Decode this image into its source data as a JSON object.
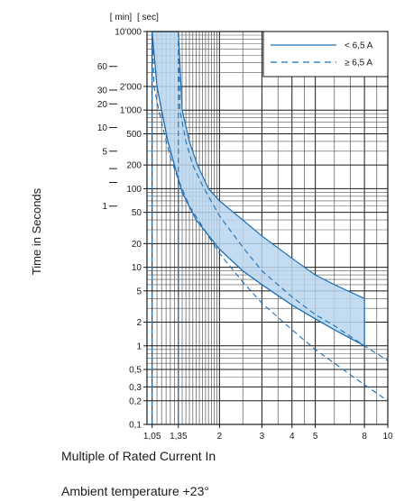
{
  "chart_data": {
    "type": "line",
    "xlabel": "Multiple of Rated Current In",
    "ylabel": "Time in Seconds",
    "x_scale": "log",
    "y_scale": "log",
    "xlim": [
      1,
      10
    ],
    "ylim": [
      0.1,
      10000
    ],
    "x_ticks": [
      {
        "value": 1.05,
        "label": "1,05"
      },
      {
        "value": 1.35,
        "label": "1,35"
      },
      {
        "value": 2,
        "label": "2"
      },
      {
        "value": 3,
        "label": "3"
      },
      {
        "value": 4,
        "label": "4"
      },
      {
        "value": 5,
        "label": "5"
      },
      {
        "value": 8,
        "label": "8"
      },
      {
        "value": 10,
        "label": "10"
      }
    ],
    "y_sec_ticks": [
      {
        "value": 10000,
        "label": "10'000"
      },
      {
        "value": 2000,
        "label": "2'000"
      },
      {
        "value": 1000,
        "label": "1'000"
      },
      {
        "value": 500,
        "label": "500"
      },
      {
        "value": 200,
        "label": "200"
      },
      {
        "value": 100,
        "label": "100"
      },
      {
        "value": 50,
        "label": "50"
      },
      {
        "value": 20,
        "label": "20"
      },
      {
        "value": 10,
        "label": "10"
      },
      {
        "value": 5,
        "label": "5"
      },
      {
        "value": 2,
        "label": "2"
      },
      {
        "value": 1,
        "label": "1"
      },
      {
        "value": 0.5,
        "label": "0,5"
      },
      {
        "value": 0.3,
        "label": "0,3"
      },
      {
        "value": 0.2,
        "label": "0,2"
      },
      {
        "value": 0.1,
        "label": "0,1"
      }
    ],
    "y_min_ticks": [
      {
        "value": 3600,
        "label": "60"
      },
      {
        "value": 1800,
        "label": "30"
      },
      {
        "value": 1200,
        "label": "20"
      },
      {
        "value": 600,
        "label": "10"
      },
      {
        "value": 300,
        "label": "5"
      },
      {
        "value": 180,
        "label": ""
      },
      {
        "value": 120,
        "label": ""
      },
      {
        "value": 60,
        "label": "1"
      }
    ],
    "unit_labels": {
      "min": "[ min]",
      "sec": "[ sec]"
    },
    "band": {
      "upper": [
        {
          "x": 1.35,
          "y": 10000
        },
        {
          "x": 1.4,
          "y": 1000
        },
        {
          "x": 1.5,
          "y": 400
        },
        {
          "x": 1.62,
          "y": 200
        },
        {
          "x": 1.8,
          "y": 100
        },
        {
          "x": 2.0,
          "y": 70
        },
        {
          "x": 2.5,
          "y": 40
        },
        {
          "x": 3.0,
          "y": 25
        },
        {
          "x": 4.0,
          "y": 13
        },
        {
          "x": 5.0,
          "y": 8
        },
        {
          "x": 6.0,
          "y": 6
        },
        {
          "x": 8.0,
          "y": 4
        }
      ],
      "lower": [
        {
          "x": 8.0,
          "y": 1
        },
        {
          "x": 6.0,
          "y": 1.6
        },
        {
          "x": 5.0,
          "y": 2.2
        },
        {
          "x": 4.0,
          "y": 3.3
        },
        {
          "x": 3.0,
          "y": 6
        },
        {
          "x": 2.5,
          "y": 9
        },
        {
          "x": 2.0,
          "y": 17
        },
        {
          "x": 1.6,
          "y": 40
        },
        {
          "x": 1.4,
          "y": 90
        },
        {
          "x": 1.3,
          "y": 200
        },
        {
          "x": 1.22,
          "y": 400
        },
        {
          "x": 1.15,
          "y": 1000
        },
        {
          "x": 1.1,
          "y": 2000
        },
        {
          "x": 1.05,
          "y": 10000
        }
      ]
    },
    "series": [
      {
        "name": "< 6,5 A",
        "style": "solid",
        "x": [
          1.05,
          1.05,
          1.1,
          1.15,
          1.22,
          1.3,
          1.4,
          1.6,
          2.0,
          2.5,
          3.0,
          4.0,
          5.0,
          6.0,
          8.0
        ],
        "y": [
          10000,
          10000,
          2000,
          1000,
          400,
          200,
          90,
          40,
          17,
          9,
          6,
          3.3,
          2.2,
          1.6,
          1
        ]
      },
      {
        "name": "≥ 6,5 A",
        "style": "dashed",
        "x": [
          1.05,
          1.07,
          1.12,
          1.18,
          1.25,
          1.35,
          1.5,
          1.8,
          2.0,
          2.5,
          3.0,
          4.0,
          5.0,
          6.0,
          8.0,
          10.0
        ],
        "y": [
          10000,
          2000,
          1000,
          500,
          250,
          130,
          60,
          25,
          15,
          6.5,
          3.5,
          1.6,
          0.9,
          0.6,
          0.32,
          0.2
        ]
      },
      {
        "name": "≥ 6,5 A",
        "style": "dashed",
        "legend": false,
        "x": [
          1.35,
          1.37,
          1.45,
          1.55,
          1.7,
          2.0,
          2.5,
          3.0,
          4.0,
          5.0,
          6.0,
          8.0,
          10.0
        ],
        "y": [
          10000,
          1000,
          400,
          200,
          110,
          45,
          18,
          9,
          4.2,
          2.5,
          1.8,
          1.0,
          0.65
        ]
      }
    ],
    "vlines": [
      {
        "x": 1.05,
        "style": "dashed"
      },
      {
        "x": 1.35,
        "style": "dashed"
      }
    ],
    "legend": {
      "position": "top-right",
      "entries": [
        {
          "label": "< 6,5 A",
          "style": "solid"
        },
        {
          "label": "≥ 6,5 A",
          "style": "dashed"
        }
      ]
    },
    "grid": true,
    "colors": {
      "line": "#1f6fb4",
      "band_fill": "#b9d6ee",
      "grid": "#1a1a1a",
      "grid_minor": "#555555"
    }
  },
  "captions": {
    "xlabel": "Multiple of Rated Current In",
    "ambient": "Ambient temperature +23°"
  }
}
